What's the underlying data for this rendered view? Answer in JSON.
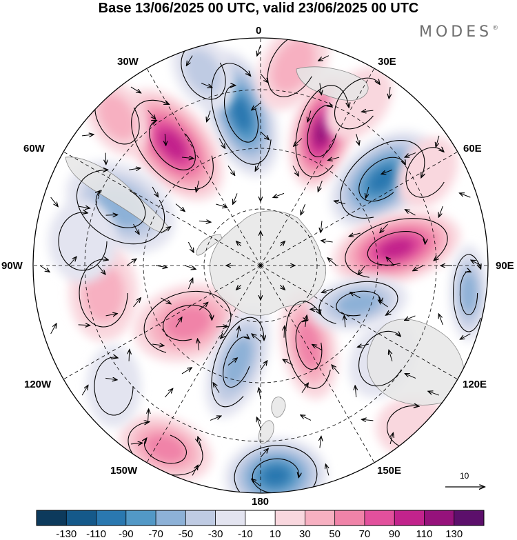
{
  "title": "Base 13/06/2025 00 UTC, valid 23/06/2025 00 UTC",
  "brand": {
    "text": "MODES",
    "mark": "®"
  },
  "map": {
    "projection": "south-polar-stereographic",
    "lon_labels": {
      "top": "0",
      "top_right": "30E",
      "upper_right": "60E",
      "right": "90E",
      "lower_right": "120E",
      "bottom_right": "150E",
      "bottom": "180",
      "bottom_left": "150W",
      "lower_left": "120W",
      "left": "90W",
      "upper_left": "60W",
      "top_left": "30W"
    },
    "colors": {
      "land_fill": "#e6e6e6",
      "coast": "#888888",
      "grid": "#000000",
      "streamline": "#000000"
    }
  },
  "vector_reference": {
    "label": "10"
  },
  "colorbar": {
    "colors": [
      "#0d3a5c",
      "#15598a",
      "#2a78b0",
      "#5298c6",
      "#8db1d7",
      "#bfcbe3",
      "#e3e4f0",
      "#ffffff",
      "#f9d7de",
      "#f7b0c1",
      "#f083a8",
      "#e2509c",
      "#c2238c",
      "#96127b",
      "#5c0f6b"
    ],
    "labels": [
      "-130",
      "-110",
      "-90",
      "-70",
      "-50",
      "-30",
      "-10",
      "10",
      "30",
      "50",
      "70",
      "90",
      "110",
      "130"
    ]
  }
}
